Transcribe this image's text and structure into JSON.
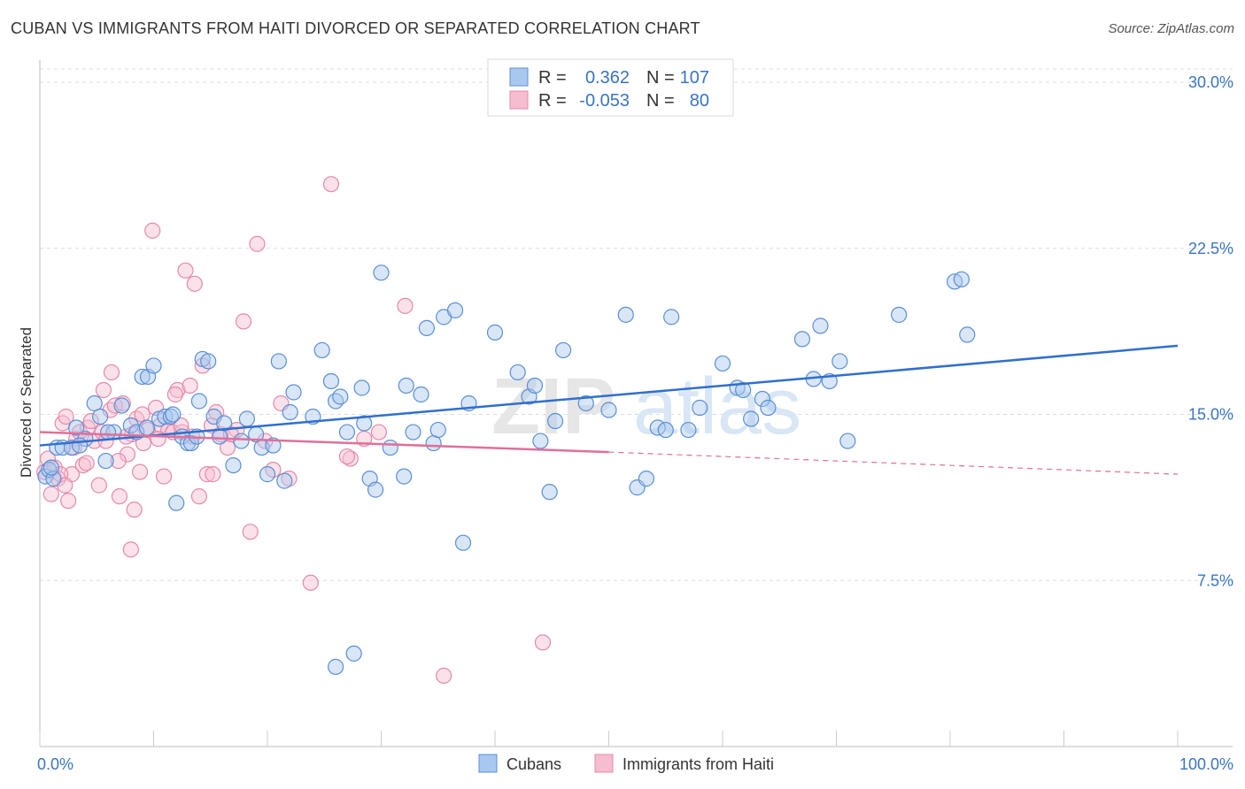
{
  "header": {
    "title": "CUBAN VS IMMIGRANTS FROM HAITI DIVORCED OR SEPARATED CORRELATION CHART",
    "source": "Source: ZipAtlas.com"
  },
  "watermark": {
    "zip": "ZIP",
    "atlas": "atlas"
  },
  "colors": {
    "blue_fill": "#a9c8f0",
    "blue_stroke": "#5b8fd6",
    "blue_line": "#2f6fcf",
    "pink_fill": "#f6bcd0",
    "pink_stroke": "#e58aaa",
    "pink_line": "#e0709a",
    "grid": "#dddddd",
    "tick_text": "#3a74c4"
  },
  "stats_legend": {
    "rows": [
      {
        "r_label": "R =",
        "r_value": "0.362",
        "n_label": "N =",
        "n_value": "107",
        "color": "#a9c8f0"
      },
      {
        "r_label": "R =",
        "r_value": "-0.053",
        "n_label": "N =",
        "n_value": "80",
        "color": "#f6bcd0"
      }
    ]
  },
  "chart_data": {
    "type": "scatter",
    "title": "CUBAN VS IMMIGRANTS FROM HAITI DIVORCED OR SEPARATED CORRELATION CHART",
    "xlabel": "",
    "ylabel": "Divorced or Separated",
    "xlim": [
      0,
      100
    ],
    "ylim": [
      0,
      31
    ],
    "x_tick_labels": [
      "0.0%",
      "100.0%"
    ],
    "y_ticks": [
      7.5,
      15.0,
      22.5,
      30.0
    ],
    "y_tick_labels": [
      "7.5%",
      "15.0%",
      "22.5%",
      "30.0%"
    ],
    "grid": true,
    "legend_position": "bottom-center",
    "series": [
      {
        "name": "Cubans",
        "color": "#a9c8f0",
        "trend": {
          "x": [
            0,
            100
          ],
          "y": [
            13.6,
            18.1
          ],
          "style": "solid"
        },
        "points": [
          [
            0.5,
            12.2
          ],
          [
            0.8,
            12.5
          ],
          [
            1.2,
            12.1
          ],
          [
            1.5,
            13.5
          ],
          [
            2.0,
            13.5
          ],
          [
            2.8,
            13.5
          ],
          [
            3.2,
            14.4
          ],
          [
            4.0,
            13.9
          ],
          [
            4.8,
            15.5
          ],
          [
            5.3,
            14.9
          ],
          [
            5.8,
            12.9
          ],
          [
            6.5,
            14.2
          ],
          [
            7.2,
            15.4
          ],
          [
            8.0,
            14.5
          ],
          [
            8.5,
            14.2
          ],
          [
            9.0,
            16.7
          ],
          [
            9.5,
            16.7
          ],
          [
            10.0,
            17.2
          ],
          [
            10.5,
            14.8
          ],
          [
            11.0,
            14.9
          ],
          [
            11.5,
            14.9
          ],
          [
            12.0,
            11.0
          ],
          [
            12.5,
            14.0
          ],
          [
            13.0,
            13.7
          ],
          [
            13.3,
            13.7
          ],
          [
            14.0,
            15.6
          ],
          [
            14.3,
            17.5
          ],
          [
            14.8,
            17.4
          ],
          [
            15.3,
            14.9
          ],
          [
            15.8,
            14.0
          ],
          [
            16.2,
            14.6
          ],
          [
            17.0,
            12.7
          ],
          [
            17.7,
            13.8
          ],
          [
            18.2,
            14.8
          ],
          [
            19.0,
            14.1
          ],
          [
            19.5,
            13.5
          ],
          [
            20.0,
            12.3
          ],
          [
            20.5,
            13.6
          ],
          [
            21.0,
            17.4
          ],
          [
            21.5,
            12.0
          ],
          [
            22.0,
            15.1
          ],
          [
            22.3,
            16.0
          ],
          [
            24.0,
            14.9
          ],
          [
            24.8,
            17.9
          ],
          [
            25.6,
            16.5
          ],
          [
            26.0,
            15.6
          ],
          [
            26.4,
            15.8
          ],
          [
            27.0,
            14.2
          ],
          [
            27.6,
            4.2
          ],
          [
            28.3,
            16.2
          ],
          [
            28.5,
            14.6
          ],
          [
            29.0,
            12.1
          ],
          [
            29.5,
            11.6
          ],
          [
            30.0,
            21.4
          ],
          [
            30.8,
            13.5
          ],
          [
            32.0,
            12.2
          ],
          [
            32.2,
            16.3
          ],
          [
            32.8,
            14.2
          ],
          [
            33.5,
            15.9
          ],
          [
            34.0,
            18.9
          ],
          [
            34.6,
            13.7
          ],
          [
            35.0,
            14.3
          ],
          [
            35.5,
            19.4
          ],
          [
            36.5,
            19.7
          ],
          [
            37.2,
            9.2
          ],
          [
            37.7,
            15.5
          ],
          [
            40.0,
            18.7
          ],
          [
            42.0,
            16.9
          ],
          [
            43.0,
            15.8
          ],
          [
            43.5,
            16.3
          ],
          [
            44.0,
            13.8
          ],
          [
            44.8,
            11.5
          ],
          [
            45.3,
            14.7
          ],
          [
            46.0,
            17.9
          ],
          [
            48.0,
            15.5
          ],
          [
            50.0,
            15.2
          ],
          [
            51.5,
            19.5
          ],
          [
            52.5,
            11.7
          ],
          [
            53.3,
            12.1
          ],
          [
            54.3,
            14.4
          ],
          [
            55.0,
            14.3
          ],
          [
            55.5,
            19.4
          ],
          [
            57.0,
            14.3
          ],
          [
            58.0,
            15.3
          ],
          [
            60.0,
            17.3
          ],
          [
            61.3,
            16.2
          ],
          [
            61.8,
            16.1
          ],
          [
            62.5,
            14.8
          ],
          [
            63.5,
            15.7
          ],
          [
            64.0,
            15.3
          ],
          [
            67.0,
            18.4
          ],
          [
            68.0,
            16.6
          ],
          [
            68.6,
            19.0
          ],
          [
            69.4,
            16.5
          ],
          [
            70.3,
            17.4
          ],
          [
            71.0,
            13.8
          ],
          [
            75.5,
            19.5
          ],
          [
            80.4,
            21.0
          ],
          [
            81.0,
            21.1
          ],
          [
            81.5,
            18.6
          ],
          [
            26.0,
            3.6
          ],
          [
            1.0,
            12.6
          ],
          [
            3.5,
            13.6
          ],
          [
            6.0,
            14.2
          ],
          [
            9.4,
            14.4
          ],
          [
            11.7,
            15.0
          ],
          [
            13.8,
            14.0
          ]
        ]
      },
      {
        "name": "Immigrants from Haiti",
        "color": "#f6bcd0",
        "trend": {
          "x": [
            0,
            50
          ],
          "y": [
            14.2,
            13.3
          ],
          "style": "solid",
          "dashed_extension": {
            "x": [
              50,
              100
            ],
            "y": [
              13.3,
              12.3
            ]
          }
        },
        "points": [
          [
            0.4,
            12.4
          ],
          [
            0.7,
            13.0
          ],
          [
            1.0,
            11.4
          ],
          [
            1.3,
            12.6
          ],
          [
            1.6,
            12.1
          ],
          [
            2.0,
            14.6
          ],
          [
            2.3,
            14.9
          ],
          [
            2.5,
            11.1
          ],
          [
            2.8,
            12.3
          ],
          [
            3.2,
            13.9
          ],
          [
            3.5,
            14.2
          ],
          [
            3.8,
            12.7
          ],
          [
            4.2,
            14.4
          ],
          [
            4.5,
            14.7
          ],
          [
            4.8,
            13.8
          ],
          [
            5.2,
            11.8
          ],
          [
            5.5,
            14.2
          ],
          [
            5.8,
            13.8
          ],
          [
            6.2,
            15.2
          ],
          [
            6.6,
            15.4
          ],
          [
            7.0,
            11.3
          ],
          [
            7.3,
            15.5
          ],
          [
            7.7,
            13.2
          ],
          [
            8.1,
            14.1
          ],
          [
            8.5,
            14.8
          ],
          [
            8.8,
            12.4
          ],
          [
            9.1,
            13.7
          ],
          [
            9.5,
            14.3
          ],
          [
            9.9,
            23.3
          ],
          [
            10.2,
            15.3
          ],
          [
            10.6,
            14.5
          ],
          [
            10.9,
            12.2
          ],
          [
            11.3,
            14.3
          ],
          [
            11.7,
            14.2
          ],
          [
            12.1,
            16.1
          ],
          [
            12.5,
            14.2
          ],
          [
            12.8,
            21.5
          ],
          [
            13.2,
            16.3
          ],
          [
            13.6,
            20.9
          ],
          [
            14.0,
            11.3
          ],
          [
            14.3,
            17.2
          ],
          [
            14.7,
            12.3
          ],
          [
            15.1,
            14.5
          ],
          [
            15.5,
            15.1
          ],
          [
            15.9,
            14.1
          ],
          [
            16.5,
            13.5
          ],
          [
            17.3,
            14.3
          ],
          [
            17.9,
            19.2
          ],
          [
            18.5,
            9.7
          ],
          [
            19.1,
            22.7
          ],
          [
            19.8,
            13.8
          ],
          [
            20.5,
            12.5
          ],
          [
            21.2,
            15.5
          ],
          [
            21.9,
            12.1
          ],
          [
            23.8,
            7.4
          ],
          [
            25.6,
            25.4
          ],
          [
            27.3,
            13.0
          ],
          [
            28.5,
            13.9
          ],
          [
            29.8,
            14.2
          ],
          [
            32.1,
            19.9
          ],
          [
            35.5,
            3.2
          ],
          [
            44.2,
            4.7
          ],
          [
            8.3,
            10.7
          ],
          [
            8.0,
            8.9
          ],
          [
            5.6,
            16.1
          ],
          [
            6.3,
            16.9
          ],
          [
            10.4,
            13.9
          ],
          [
            11.9,
            15.9
          ],
          [
            12.4,
            14.5
          ],
          [
            16.8,
            14.1
          ],
          [
            4.1,
            12.8
          ],
          [
            3.0,
            13.5
          ],
          [
            1.8,
            12.3
          ],
          [
            2.2,
            11.8
          ],
          [
            6.9,
            12.9
          ],
          [
            7.6,
            14.0
          ],
          [
            9.0,
            15.0
          ],
          [
            13.4,
            14.0
          ],
          [
            15.2,
            12.3
          ],
          [
            27.0,
            13.1
          ]
        ]
      }
    ]
  },
  "bottom_legend": {
    "items": [
      {
        "label": "Cubans",
        "color": "#a9c8f0"
      },
      {
        "label": "Immigrants from Haiti",
        "color": "#f6bcd0"
      }
    ]
  }
}
